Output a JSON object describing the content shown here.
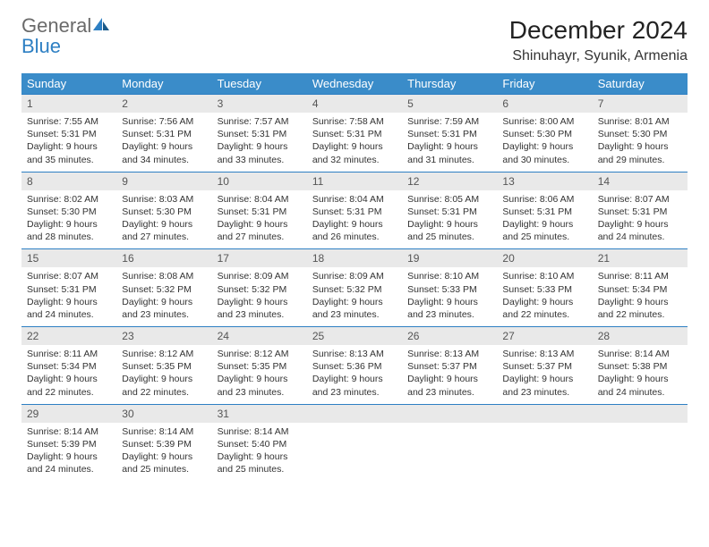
{
  "brand": {
    "part1": "General",
    "part2": "Blue"
  },
  "title": "December 2024",
  "location": "Shinuhayr, Syunik, Armenia",
  "colors": {
    "header_bg": "#3a8cc9",
    "header_text": "#ffffff",
    "daynum_bg": "#e9e9e9",
    "border": "#2d7fc3",
    "page_bg": "#ffffff",
    "text": "#333333",
    "logo_gray": "#6a6a6a",
    "logo_blue": "#2d7fc3"
  },
  "typography": {
    "title_fontsize": 28,
    "location_fontsize": 16,
    "header_fontsize": 13,
    "daynum_fontsize": 12,
    "data_fontsize": 10.5
  },
  "day_headers": [
    "Sunday",
    "Monday",
    "Tuesday",
    "Wednesday",
    "Thursday",
    "Friday",
    "Saturday"
  ],
  "weeks": [
    [
      {
        "num": "1",
        "sunrise": "Sunrise: 7:55 AM",
        "sunset": "Sunset: 5:31 PM",
        "daylight": "Daylight: 9 hours and 35 minutes."
      },
      {
        "num": "2",
        "sunrise": "Sunrise: 7:56 AM",
        "sunset": "Sunset: 5:31 PM",
        "daylight": "Daylight: 9 hours and 34 minutes."
      },
      {
        "num": "3",
        "sunrise": "Sunrise: 7:57 AM",
        "sunset": "Sunset: 5:31 PM",
        "daylight": "Daylight: 9 hours and 33 minutes."
      },
      {
        "num": "4",
        "sunrise": "Sunrise: 7:58 AM",
        "sunset": "Sunset: 5:31 PM",
        "daylight": "Daylight: 9 hours and 32 minutes."
      },
      {
        "num": "5",
        "sunrise": "Sunrise: 7:59 AM",
        "sunset": "Sunset: 5:31 PM",
        "daylight": "Daylight: 9 hours and 31 minutes."
      },
      {
        "num": "6",
        "sunrise": "Sunrise: 8:00 AM",
        "sunset": "Sunset: 5:30 PM",
        "daylight": "Daylight: 9 hours and 30 minutes."
      },
      {
        "num": "7",
        "sunrise": "Sunrise: 8:01 AM",
        "sunset": "Sunset: 5:30 PM",
        "daylight": "Daylight: 9 hours and 29 minutes."
      }
    ],
    [
      {
        "num": "8",
        "sunrise": "Sunrise: 8:02 AM",
        "sunset": "Sunset: 5:30 PM",
        "daylight": "Daylight: 9 hours and 28 minutes."
      },
      {
        "num": "9",
        "sunrise": "Sunrise: 8:03 AM",
        "sunset": "Sunset: 5:30 PM",
        "daylight": "Daylight: 9 hours and 27 minutes."
      },
      {
        "num": "10",
        "sunrise": "Sunrise: 8:04 AM",
        "sunset": "Sunset: 5:31 PM",
        "daylight": "Daylight: 9 hours and 27 minutes."
      },
      {
        "num": "11",
        "sunrise": "Sunrise: 8:04 AM",
        "sunset": "Sunset: 5:31 PM",
        "daylight": "Daylight: 9 hours and 26 minutes."
      },
      {
        "num": "12",
        "sunrise": "Sunrise: 8:05 AM",
        "sunset": "Sunset: 5:31 PM",
        "daylight": "Daylight: 9 hours and 25 minutes."
      },
      {
        "num": "13",
        "sunrise": "Sunrise: 8:06 AM",
        "sunset": "Sunset: 5:31 PM",
        "daylight": "Daylight: 9 hours and 25 minutes."
      },
      {
        "num": "14",
        "sunrise": "Sunrise: 8:07 AM",
        "sunset": "Sunset: 5:31 PM",
        "daylight": "Daylight: 9 hours and 24 minutes."
      }
    ],
    [
      {
        "num": "15",
        "sunrise": "Sunrise: 8:07 AM",
        "sunset": "Sunset: 5:31 PM",
        "daylight": "Daylight: 9 hours and 24 minutes."
      },
      {
        "num": "16",
        "sunrise": "Sunrise: 8:08 AM",
        "sunset": "Sunset: 5:32 PM",
        "daylight": "Daylight: 9 hours and 23 minutes."
      },
      {
        "num": "17",
        "sunrise": "Sunrise: 8:09 AM",
        "sunset": "Sunset: 5:32 PM",
        "daylight": "Daylight: 9 hours and 23 minutes."
      },
      {
        "num": "18",
        "sunrise": "Sunrise: 8:09 AM",
        "sunset": "Sunset: 5:32 PM",
        "daylight": "Daylight: 9 hours and 23 minutes."
      },
      {
        "num": "19",
        "sunrise": "Sunrise: 8:10 AM",
        "sunset": "Sunset: 5:33 PM",
        "daylight": "Daylight: 9 hours and 23 minutes."
      },
      {
        "num": "20",
        "sunrise": "Sunrise: 8:10 AM",
        "sunset": "Sunset: 5:33 PM",
        "daylight": "Daylight: 9 hours and 22 minutes."
      },
      {
        "num": "21",
        "sunrise": "Sunrise: 8:11 AM",
        "sunset": "Sunset: 5:34 PM",
        "daylight": "Daylight: 9 hours and 22 minutes."
      }
    ],
    [
      {
        "num": "22",
        "sunrise": "Sunrise: 8:11 AM",
        "sunset": "Sunset: 5:34 PM",
        "daylight": "Daylight: 9 hours and 22 minutes."
      },
      {
        "num": "23",
        "sunrise": "Sunrise: 8:12 AM",
        "sunset": "Sunset: 5:35 PM",
        "daylight": "Daylight: 9 hours and 22 minutes."
      },
      {
        "num": "24",
        "sunrise": "Sunrise: 8:12 AM",
        "sunset": "Sunset: 5:35 PM",
        "daylight": "Daylight: 9 hours and 23 minutes."
      },
      {
        "num": "25",
        "sunrise": "Sunrise: 8:13 AM",
        "sunset": "Sunset: 5:36 PM",
        "daylight": "Daylight: 9 hours and 23 minutes."
      },
      {
        "num": "26",
        "sunrise": "Sunrise: 8:13 AM",
        "sunset": "Sunset: 5:37 PM",
        "daylight": "Daylight: 9 hours and 23 minutes."
      },
      {
        "num": "27",
        "sunrise": "Sunrise: 8:13 AM",
        "sunset": "Sunset: 5:37 PM",
        "daylight": "Daylight: 9 hours and 23 minutes."
      },
      {
        "num": "28",
        "sunrise": "Sunrise: 8:14 AM",
        "sunset": "Sunset: 5:38 PM",
        "daylight": "Daylight: 9 hours and 24 minutes."
      }
    ],
    [
      {
        "num": "29",
        "sunrise": "Sunrise: 8:14 AM",
        "sunset": "Sunset: 5:39 PM",
        "daylight": "Daylight: 9 hours and 24 minutes."
      },
      {
        "num": "30",
        "sunrise": "Sunrise: 8:14 AM",
        "sunset": "Sunset: 5:39 PM",
        "daylight": "Daylight: 9 hours and 25 minutes."
      },
      {
        "num": "31",
        "sunrise": "Sunrise: 8:14 AM",
        "sunset": "Sunset: 5:40 PM",
        "daylight": "Daylight: 9 hours and 25 minutes."
      },
      null,
      null,
      null,
      null
    ]
  ]
}
